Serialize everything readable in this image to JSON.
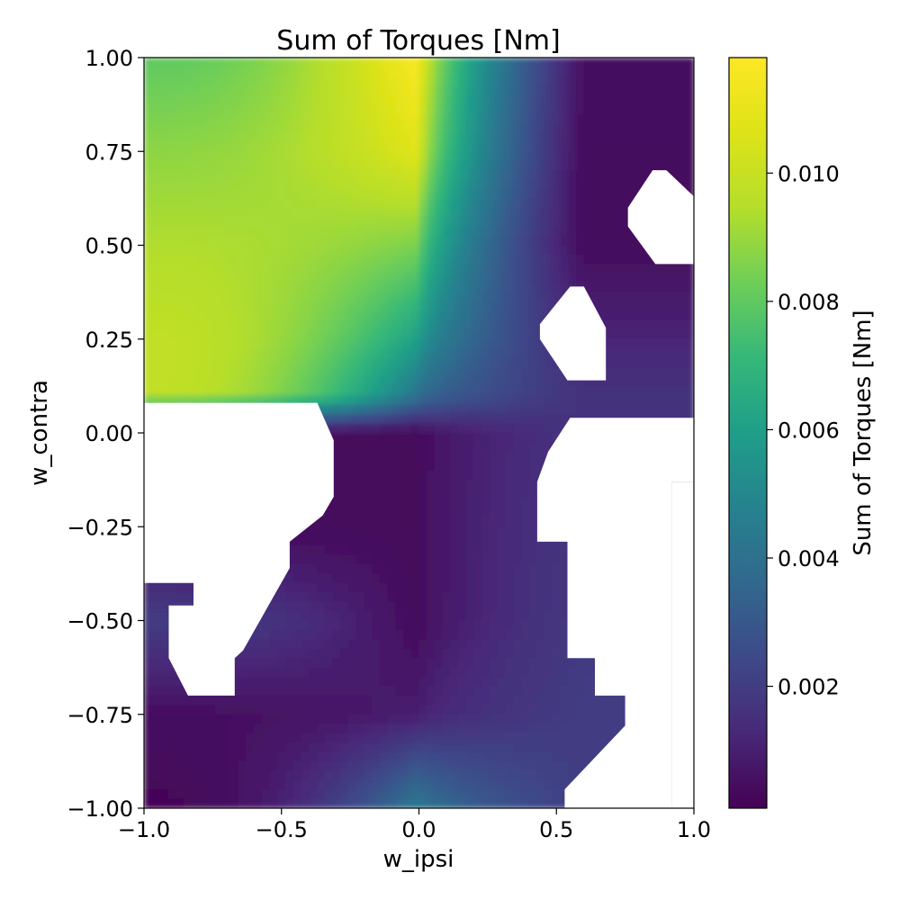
{
  "chart_data": {
    "type": "heatmap",
    "title": "Sum of Torques [Nm]",
    "xlabel": "w_ipsi",
    "ylabel": "w_contra",
    "xlim": [
      -1.0,
      1.0
    ],
    "ylim": [
      -1.0,
      1.0
    ],
    "x_ticks": [
      -1.0,
      -0.5,
      0.0,
      0.5,
      1.0
    ],
    "x_tick_labels": [
      "−1.0",
      "−0.5",
      "0.0",
      "0.5",
      "1.0"
    ],
    "y_ticks": [
      1.0,
      0.75,
      0.5,
      0.25,
      0.0,
      -0.25,
      -0.5,
      -0.75,
      -1.0
    ],
    "y_tick_labels": [
      "1.00",
      "0.75",
      "0.50",
      "0.25",
      "0.00",
      "−0.25",
      "−0.50",
      "−0.75",
      "−1.00"
    ],
    "colormap": "viridis",
    "colorbar": {
      "label": "Sum of Torques [Nm]",
      "range": [
        0.0001,
        0.0118
      ],
      "ticks": [
        0.002,
        0.004,
        0.006,
        0.008,
        0.01
      ],
      "tick_labels": [
        "0.002",
        "0.004",
        "0.006",
        "0.008",
        "0.010"
      ]
    },
    "value_bands": [
      {
        "y": 1.0,
        "left": 0.008,
        "mid": 0.0118,
        "right": 0.0005
      },
      {
        "y": 0.75,
        "left": 0.0088,
        "mid": 0.0108,
        "right": 0.0004
      },
      {
        "y": 0.5,
        "left": 0.0094,
        "mid": 0.0085,
        "right": 0.0004
      },
      {
        "y": 0.25,
        "left": 0.0098,
        "mid": 0.006,
        "right": 0.0012
      },
      {
        "y": 0.1,
        "left": 0.0098,
        "mid": 0.004,
        "right": 0.0016
      },
      {
        "y": 0.0,
        "left": 0.0004,
        "mid": 0.0003,
        "right": 0.0017
      },
      {
        "y": -0.25,
        "left": 0.0004,
        "mid": 0.0003,
        "right": 0.0018
      },
      {
        "y": -0.5,
        "left": 0.002,
        "mid": 0.0003,
        "right": 0.0019
      },
      {
        "y": -0.75,
        "left": 0.0005,
        "mid": 0.001,
        "right": 0.002
      },
      {
        "y": -1.0,
        "left": 0.0002,
        "mid": 0.0045,
        "right": 0.002
      }
    ],
    "missing_regions": [
      [
        [
          -1.0,
          0.08
        ],
        [
          -0.37,
          0.08
        ],
        [
          -0.31,
          -0.02
        ],
        [
          -0.31,
          -0.17
        ],
        [
          -0.35,
          -0.22
        ],
        [
          -0.47,
          -0.29
        ],
        [
          -0.47,
          -0.36
        ],
        [
          -0.64,
          -0.58
        ],
        [
          -0.67,
          -0.6
        ],
        [
          -0.67,
          -0.7
        ],
        [
          -0.84,
          -0.7
        ],
        [
          -0.91,
          -0.6
        ],
        [
          -0.91,
          -0.46
        ],
        [
          -0.82,
          -0.46
        ],
        [
          -0.82,
          -0.4
        ],
        [
          -1.0,
          -0.4
        ]
      ],
      [
        [
          -0.74,
          -0.29
        ],
        [
          -0.68,
          -0.29
        ],
        [
          -0.68,
          -0.34
        ],
        [
          -0.74,
          -0.34
        ]
      ],
      [
        [
          -0.61,
          -0.22
        ],
        [
          -0.59,
          -0.21
        ],
        [
          -0.57,
          -0.23
        ],
        [
          -0.61,
          -0.23
        ]
      ],
      [
        [
          0.9,
          0.7
        ],
        [
          1.0,
          0.63
        ],
        [
          1.0,
          0.45
        ],
        [
          0.86,
          0.45
        ],
        [
          0.76,
          0.55
        ],
        [
          0.76,
          0.6
        ],
        [
          0.85,
          0.7
        ]
      ],
      [
        [
          0.55,
          0.39
        ],
        [
          0.6,
          0.39
        ],
        [
          0.68,
          0.28
        ],
        [
          0.68,
          0.14
        ],
        [
          0.54,
          0.14
        ],
        [
          0.44,
          0.25
        ],
        [
          0.44,
          0.29
        ]
      ],
      [
        [
          0.55,
          0.04
        ],
        [
          1.0,
          0.04
        ],
        [
          1.0,
          -0.13
        ],
        [
          0.92,
          -0.13
        ],
        [
          0.92,
          -1.0
        ],
        [
          0.53,
          -1.0
        ],
        [
          0.53,
          -0.95
        ],
        [
          0.75,
          -0.78
        ],
        [
          0.75,
          -0.7
        ],
        [
          0.64,
          -0.7
        ],
        [
          0.64,
          -0.6
        ],
        [
          0.54,
          -0.6
        ],
        [
          0.54,
          -0.29
        ],
        [
          0.43,
          -0.29
        ],
        [
          0.43,
          -0.13
        ],
        [
          0.47,
          -0.05
        ]
      ],
      [
        [
          0.92,
          -0.13
        ],
        [
          1.0,
          -0.13
        ],
        [
          1.0,
          -1.0
        ],
        [
          0.92,
          -1.0
        ]
      ]
    ]
  }
}
